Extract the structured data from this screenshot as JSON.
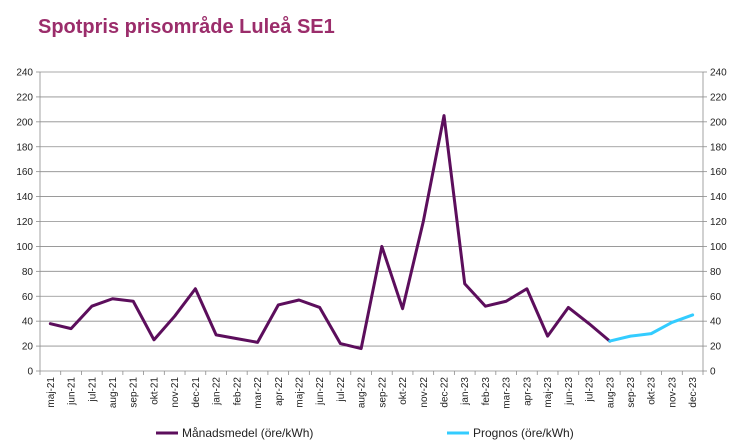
{
  "chart_data": {
    "type": "line",
    "title": "Spotpris prisområde Luleå SE1",
    "xlabel": "",
    "ylabel": "",
    "ylim": [
      0,
      240
    ],
    "yticks": [
      0,
      20,
      40,
      60,
      80,
      100,
      120,
      140,
      160,
      180,
      200,
      220,
      240
    ],
    "grid": true,
    "legend_position": "bottom",
    "categories": [
      "maj-21",
      "jun-21",
      "jul-21",
      "aug-21",
      "sep-21",
      "okt-21",
      "nov-21",
      "dec-21",
      "jan-22",
      "feb-22",
      "mar-22",
      "apr-22",
      "maj-22",
      "jun-22",
      "jul-22",
      "aug-22",
      "sep-22",
      "okt-22",
      "nov-22",
      "dec-22",
      "jan-23",
      "feb-23",
      "mar-23",
      "apr-23",
      "maj-23",
      "jun-23",
      "jul-23",
      "aug-23",
      "sep-23",
      "okt-23",
      "nov-23",
      "dec-23"
    ],
    "series": [
      {
        "name": "Månadsmedel (öre/kWh)",
        "color": "#5c0e5c",
        "values": [
          38,
          34,
          52,
          58,
          56,
          25,
          44,
          66,
          29,
          26,
          23,
          53,
          57,
          51,
          22,
          18,
          100,
          50,
          120,
          205,
          70,
          52,
          56,
          66,
          28,
          51,
          38,
          24,
          null,
          null,
          null,
          null
        ]
      },
      {
        "name": "Prognos (öre/kWh)",
        "color": "#33ccff",
        "values": [
          null,
          null,
          null,
          null,
          null,
          null,
          null,
          null,
          null,
          null,
          null,
          null,
          null,
          null,
          null,
          null,
          null,
          null,
          null,
          null,
          null,
          null,
          null,
          null,
          null,
          null,
          null,
          24,
          28,
          30,
          39,
          45
        ]
      }
    ]
  }
}
